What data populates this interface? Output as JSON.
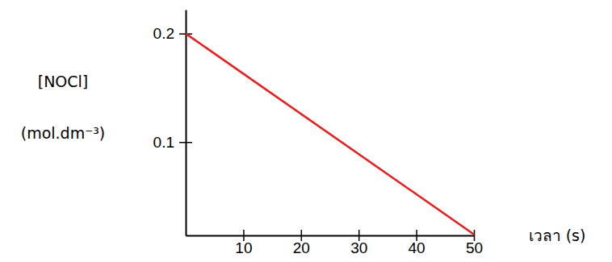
{
  "chart_data": {
    "type": "line",
    "y_label": [
      "[NOCl]",
      "(mol.dm⁻³)"
    ],
    "x_label": "เวลา (s)",
    "x": [
      0,
      50
    ],
    "values": [
      0.2,
      0.015
    ],
    "color": "#e61e1e",
    "xlim": [
      0,
      50
    ],
    "xticks": [
      10,
      20,
      30,
      40,
      50
    ],
    "ylim": [
      0.014,
      0.222
    ],
    "yticks": [
      0.1,
      0.2
    ],
    "grid": false
  }
}
